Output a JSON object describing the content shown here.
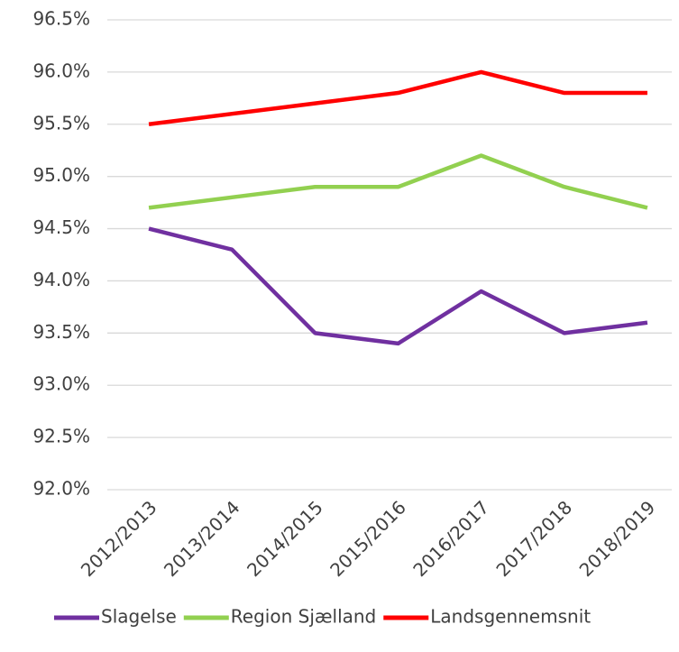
{
  "chart_data": {
    "type": "line",
    "categories": [
      "2012/2013",
      "2013/2014",
      "2014/2015",
      "2015/2016",
      "2016/2017",
      "2017/2018",
      "2018/2019"
    ],
    "series": [
      {
        "name": "Slagelse",
        "color": "#7030a0",
        "values": [
          94.5,
          94.3,
          93.5,
          93.4,
          93.9,
          93.5,
          93.6
        ]
      },
      {
        "name": "Region Sjælland",
        "color": "#92d050",
        "values": [
          94.7,
          94.8,
          94.9,
          94.9,
          95.2,
          94.9,
          94.7
        ]
      },
      {
        "name": "Landsgennemsnit",
        "color": "#ff0000",
        "values": [
          95.5,
          95.6,
          95.7,
          95.8,
          96.0,
          95.8,
          95.8
        ]
      }
    ],
    "ylim": [
      92.0,
      96.5
    ],
    "yticks": [
      {
        "value": 92.0,
        "label": "92.0%"
      },
      {
        "value": 92.5,
        "label": "92.5%"
      },
      {
        "value": 93.0,
        "label": "93.0%"
      },
      {
        "value": 93.5,
        "label": "93.5%"
      },
      {
        "value": 94.0,
        "label": "94.0%"
      },
      {
        "value": 94.5,
        "label": "94.5%"
      },
      {
        "value": 95.0,
        "label": "95.0%"
      },
      {
        "value": 95.5,
        "label": "95.5%"
      },
      {
        "value": 96.0,
        "label": "96.0%"
      },
      {
        "value": 96.5,
        "label": "96.5%"
      }
    ],
    "grid": true,
    "legend": "bottom"
  }
}
